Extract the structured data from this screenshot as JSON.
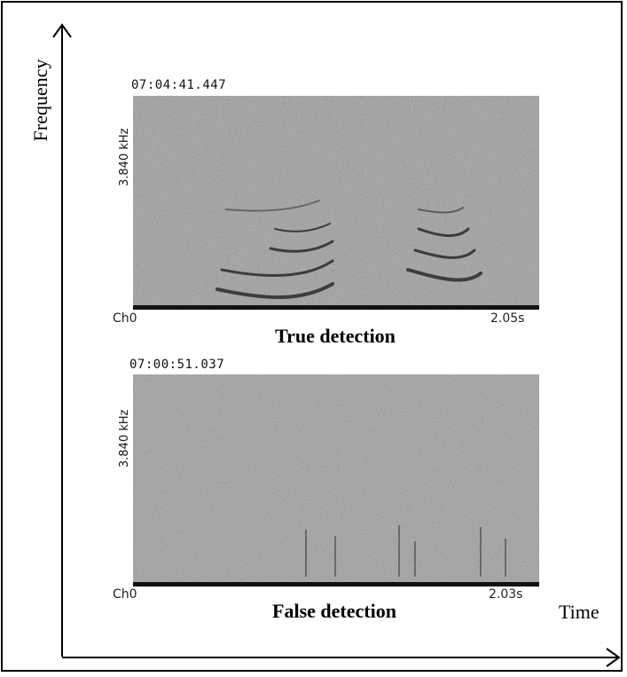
{
  "axes": {
    "y_label": "Frequency",
    "x_label": "Time"
  },
  "panels": [
    {
      "timestamp": "07:04:41.447",
      "freq_label": "3.840 kHz",
      "channel": "Ch0",
      "duration": "2.05s",
      "caption": "True detection"
    },
    {
      "timestamp": "07:00:51.037",
      "freq_label": "3.840 kHz",
      "channel": "Ch0",
      "duration": "2.03s",
      "caption": "False detection"
    }
  ]
}
